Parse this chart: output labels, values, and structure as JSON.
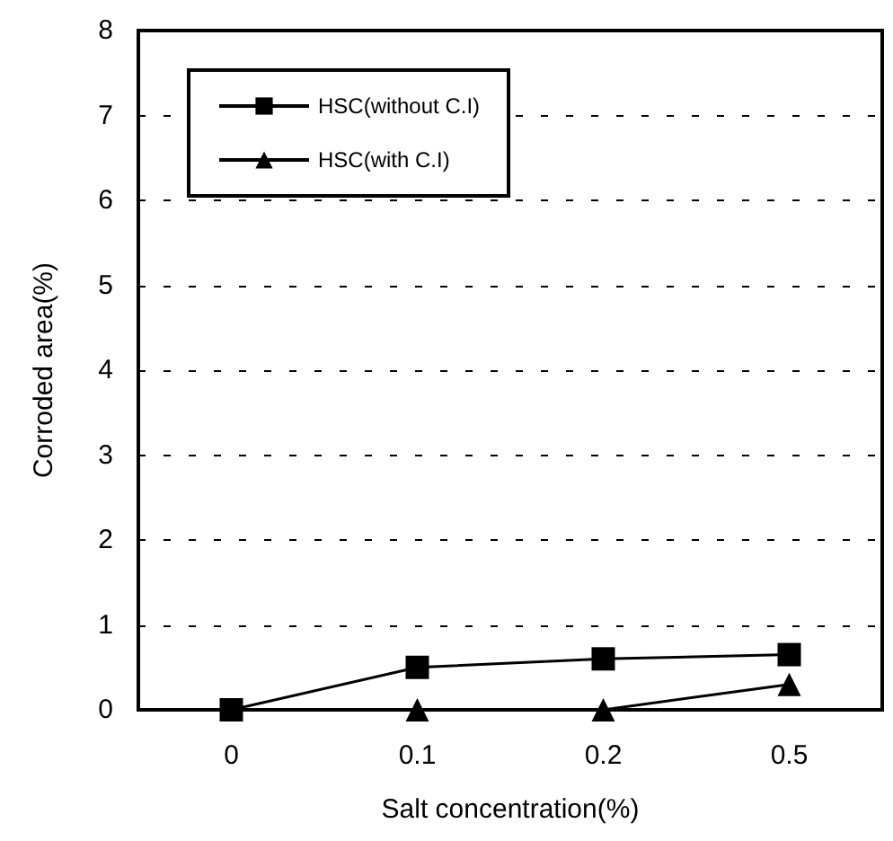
{
  "chart_data": {
    "type": "line",
    "xlabel": "Salt concentration(%)",
    "ylabel": "Corroded area(%)",
    "categories": [
      "0",
      "0.1",
      "0.2",
      "0.5"
    ],
    "series": [
      {
        "name": "HSC(without C.I)",
        "color": "#000000",
        "marker": "square",
        "values": [
          0,
          0.5,
          0.6,
          0.65
        ]
      },
      {
        "name": "HSC(with C.I)",
        "color": "#000000",
        "marker": "triangle",
        "values": [
          null,
          0,
          0,
          0.3
        ]
      }
    ],
    "ylim": [
      0,
      8
    ],
    "yticks": [
      0,
      1,
      2,
      3,
      4,
      5,
      6,
      7,
      8
    ],
    "grid": "y",
    "legend": "top left",
    "line_style": "solid"
  }
}
